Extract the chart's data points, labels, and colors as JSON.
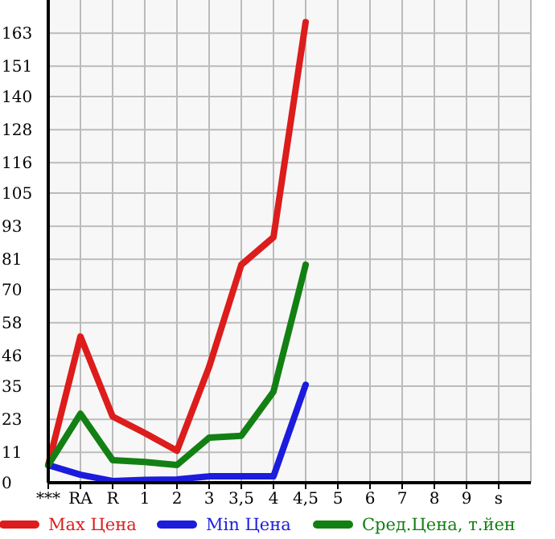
{
  "chart_data": {
    "type": "line",
    "categories": [
      "***",
      "RA",
      "R",
      "1",
      "2",
      "3",
      "3,5",
      "4",
      "4,5",
      "5",
      "6",
      "7",
      "8",
      "9",
      "s"
    ],
    "ylim": [
      0,
      175
    ],
    "yticks": [
      0,
      11,
      23,
      35,
      46,
      58,
      70,
      81,
      93,
      105,
      116,
      128,
      140,
      151,
      163
    ],
    "grid": true,
    "legend": "bottom",
    "marker": "none",
    "line_style": "solid",
    "series": [
      {
        "name": "Max Цена",
        "color": "#dd1c1c",
        "values": [
          6.4,
          53,
          24,
          18,
          11.6,
          42,
          79,
          89,
          167,
          null,
          null,
          null,
          null,
          null,
          null
        ]
      },
      {
        "name": "Min Цена",
        "color": "#1c1cdd",
        "values": [
          6.4,
          2.9,
          0.6,
          1,
          1.2,
          2.3,
          2.3,
          2.3,
          35.5,
          null,
          null,
          null,
          null,
          null,
          null
        ]
      },
      {
        "name": "Сред.Цена, т.йен",
        "color": "#138013",
        "values": [
          6.4,
          25,
          8.2,
          7.5,
          6.4,
          16.3,
          17,
          33,
          79,
          null,
          null,
          null,
          null,
          null,
          null
        ]
      }
    ]
  }
}
